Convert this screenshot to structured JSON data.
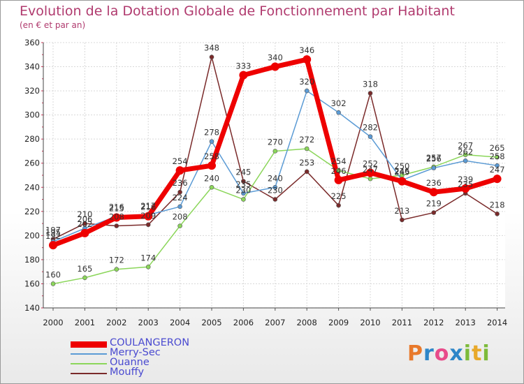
{
  "chart_data": {
    "type": "line",
    "title": "Evolution de la Dotation Globale de Fonctionnement par Habitant",
    "subtitle": "(en € et par an)",
    "x": [
      "2000",
      "2001",
      "2002",
      "2003",
      "2004",
      "2005",
      "2006",
      "2007",
      "2008",
      "2009",
      "2010",
      "2011",
      "2012",
      "2013",
      "2014"
    ],
    "ylim": [
      140,
      360
    ],
    "yticks": [
      "140",
      "160",
      "180",
      "200",
      "220",
      "240",
      "260",
      "280",
      "300",
      "320",
      "340",
      "360"
    ],
    "grid": true,
    "series": [
      {
        "name": "COULANGERON",
        "color": "#ee0000",
        "width": 7,
        "values": [
          192,
          202,
          215,
          216,
          254,
          258,
          333,
          340,
          346,
          246,
          252,
          245,
          236,
          239,
          247
        ],
        "labels": [
          "192",
          "202",
          "215",
          "216",
          "254",
          "258",
          "333",
          "340",
          "346",
          "246",
          "252",
          "245",
          "236",
          "239",
          "247"
        ]
      },
      {
        "name": "Merry-Sec",
        "color": "#5b9bd5",
        "width": 1.5,
        "values": [
          195,
          206,
          216,
          217,
          224,
          278,
          235,
          240,
          320,
          302,
          282,
          246,
          256,
          262,
          258
        ],
        "labels": [
          "195",
          "206",
          "216",
          "217",
          "224",
          "278",
          "235",
          "240",
          "320",
          "302",
          "282",
          "246",
          "256",
          "262",
          "258"
        ]
      },
      {
        "name": "Ouanne",
        "color": "#8bd65a",
        "width": 1.5,
        "values": [
          160,
          165,
          172,
          174,
          208,
          240,
          230,
          270,
          272,
          254,
          247,
          250,
          257,
          267,
          265
        ],
        "labels": [
          "160",
          "165",
          "172",
          "174",
          "208",
          "240",
          "230",
          "270",
          "272",
          "254",
          "247",
          "250",
          "257",
          "267",
          "265"
        ]
      },
      {
        "name": "Mouffy",
        "color": "#7a2a2a",
        "width": 1.5,
        "values": [
          197,
          210,
          208,
          209,
          236,
          348,
          245,
          230,
          253,
          225,
          318,
          213,
          219,
          235,
          218
        ],
        "labels": [
          "197",
          "210",
          "208",
          "209",
          "236",
          "348",
          "245",
          "230",
          "253",
          "225",
          "318",
          "213",
          "219",
          "235",
          "218"
        ]
      }
    ],
    "legend_position": "bottom-left"
  },
  "logo": {
    "letters": [
      "P",
      "r",
      "o",
      "x",
      "i",
      "t",
      "i"
    ],
    "colors": [
      "#e8792b",
      "#2e86c8",
      "#e84b8a",
      "#2e86c8",
      "#7dbb3a",
      "#e8a92b",
      "#7dbb3a"
    ]
  }
}
